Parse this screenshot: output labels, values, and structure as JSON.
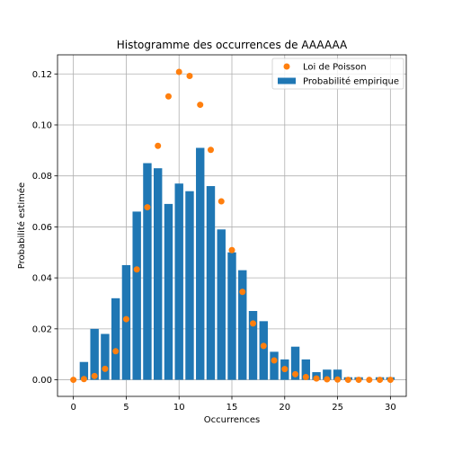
{
  "chart_data": {
    "type": "bar",
    "title": "Histogramme des occurrences de AAAAAA",
    "xlabel": "Occurrences",
    "ylabel": "Probabilité estimée",
    "xlim": [
      -1.5,
      31.5
    ],
    "ylim": [
      -0.0065,
      0.1275
    ],
    "xticks": [
      0,
      5,
      10,
      15,
      20,
      25,
      30
    ],
    "xtick_labels": [
      "0",
      "5",
      "10",
      "15",
      "20",
      "25",
      "30"
    ],
    "yticks": [
      0.0,
      0.02,
      0.04,
      0.06,
      0.08,
      0.1,
      0.12
    ],
    "ytick_labels": [
      "0.00",
      "0.02",
      "0.04",
      "0.06",
      "0.08",
      "0.10",
      "0.12"
    ],
    "grid": true,
    "legend_position": "top-right",
    "series": [
      {
        "name": "Probabilité empirique",
        "kind": "bar",
        "color": "#1f77b4",
        "x": [
          0,
          1,
          2,
          3,
          4,
          5,
          6,
          7,
          8,
          9,
          10,
          11,
          12,
          13,
          14,
          15,
          16,
          17,
          18,
          19,
          20,
          21,
          22,
          23,
          24,
          25,
          26,
          27,
          28,
          29,
          30
        ],
        "values": [
          0.0,
          0.007,
          0.02,
          0.018,
          0.032,
          0.045,
          0.066,
          0.085,
          0.083,
          0.069,
          0.077,
          0.074,
          0.091,
          0.076,
          0.059,
          0.05,
          0.043,
          0.027,
          0.023,
          0.011,
          0.008,
          0.013,
          0.008,
          0.003,
          0.004,
          0.004,
          0.001,
          0.001,
          0.0,
          0.001,
          0.001
        ]
      },
      {
        "name": "Loi de Poisson",
        "kind": "scatter",
        "color": "#ff7f0e",
        "x": [
          0,
          1,
          2,
          3,
          4,
          5,
          6,
          7,
          8,
          9,
          10,
          11,
          12,
          13,
          14,
          15,
          16,
          17,
          18,
          19,
          20,
          21,
          22,
          23,
          24,
          25,
          26,
          27,
          28,
          29,
          30
        ],
        "values": [
          0.0,
          0.0003,
          0.0015,
          0.0043,
          0.0112,
          0.0238,
          0.0433,
          0.0677,
          0.0918,
          0.1112,
          0.1208,
          0.1192,
          0.1079,
          0.0902,
          0.07,
          0.0509,
          0.0345,
          0.0221,
          0.0133,
          0.0076,
          0.0042,
          0.0022,
          0.0011,
          0.0005,
          0.0002,
          0.0001,
          0.0,
          0.0,
          0.0,
          0.0,
          0.0
        ]
      }
    ]
  }
}
